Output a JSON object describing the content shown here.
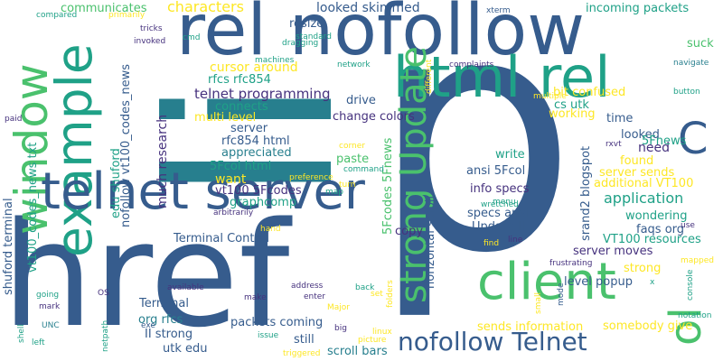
{
  "palette": {
    "dark_purple": "#46327e",
    "indigo": "#365c8d",
    "blue": "#277f8e",
    "teal": "#1fa187",
    "green": "#4ac16d",
    "lime": "#a0da39",
    "yellow": "#fde725",
    "background": "#ffffff"
  },
  "words": [
    {
      "text": "p"
    },
    {
      "text": "li"
    },
    {
      "text": "href"
    },
    {
      "text": "rel nofollow"
    },
    {
      "text": "html rel"
    },
    {
      "text": "example"
    },
    {
      "text": "window"
    },
    {
      "text": "telnet server"
    },
    {
      "text": "client"
    },
    {
      "text": "strong Update"
    },
    {
      "text": "nofollow Telnet"
    },
    {
      "text": "C"
    },
    {
      "text": "ol"
    },
    {
      "text": "characters"
    },
    {
      "text": "communicates"
    },
    {
      "text": "looked skimmed"
    },
    {
      "text": "incoming packets"
    },
    {
      "text": "telnet programming"
    },
    {
      "text": "rfcs rfc854"
    },
    {
      "text": "cursor around"
    },
    {
      "text": "application"
    },
    {
      "text": "bit confused"
    },
    {
      "text": "cs utk"
    },
    {
      "text": "change colors"
    },
    {
      "text": "multi level"
    },
    {
      "text": "connects"
    },
    {
      "text": "much research"
    },
    {
      "text": "server"
    },
    {
      "text": "rfc854 html"
    },
    {
      "text": "appreciated"
    },
    {
      "text": "5Fcol html"
    },
    {
      "text": "want"
    },
    {
      "text": "vt100 5Fcodes"
    },
    {
      "text": "graphcomp"
    },
    {
      "text": "write"
    },
    {
      "text": "ansi 5Fcol"
    },
    {
      "text": "paste"
    },
    {
      "text": "info specs"
    },
    {
      "text": "specs ansi"
    },
    {
      "text": "Update II"
    },
    {
      "text": "copy"
    },
    {
      "text": "time"
    },
    {
      "text": "need"
    },
    {
      "text": "found"
    },
    {
      "text": "looked"
    },
    {
      "text": "server sends"
    },
    {
      "text": "additional VT100"
    },
    {
      "text": "wondering"
    },
    {
      "text": "faqs org"
    },
    {
      "text": "VT100 resources"
    },
    {
      "text": "server moves"
    },
    {
      "text": "strong"
    },
    {
      "text": "level popup"
    },
    {
      "text": "sends information"
    },
    {
      "text": "somebody give"
    },
    {
      "text": "packets coming"
    },
    {
      "text": "org rfcs"
    },
    {
      "text": "II strong"
    },
    {
      "text": "utk edu"
    },
    {
      "text": "still"
    },
    {
      "text": "scroll bars"
    },
    {
      "text": "Terminal Control"
    },
    {
      "text": "Terminal"
    },
    {
      "text": "shuford terminal"
    },
    {
      "text": "vt100_codes_news txt"
    },
    {
      "text": "edu shuford"
    },
    {
      "text": "nofollow vt100_codes_news"
    },
    {
      "text": "horizontal scroll"
    },
    {
      "text": "srand2 blogspot"
    },
    {
      "text": "5Fcodes 5Fnews"
    },
    {
      "text": "5Fnews"
    },
    {
      "text": "working"
    },
    {
      "text": "resize"
    },
    {
      "text": "drive"
    },
    {
      "text": "suck"
    },
    {
      "text": "compared"
    },
    {
      "text": "primarily"
    },
    {
      "text": "tricks"
    },
    {
      "text": "invoked"
    },
    {
      "text": "cmd"
    },
    {
      "text": "standard"
    },
    {
      "text": "dragging"
    },
    {
      "text": "machines"
    },
    {
      "text": "network"
    },
    {
      "text": "xterm"
    },
    {
      "text": "different"
    },
    {
      "text": "complaints"
    },
    {
      "text": "navigate"
    },
    {
      "text": "multiple"
    },
    {
      "text": "button"
    },
    {
      "text": "rxvt"
    },
    {
      "text": "paid"
    },
    {
      "text": "corner"
    },
    {
      "text": "command"
    },
    {
      "text": "turn"
    },
    {
      "text": "map"
    },
    {
      "text": "preference"
    },
    {
      "text": "arbitrarily"
    },
    {
      "text": "wretched"
    },
    {
      "text": "menu"
    },
    {
      "text": "hand"
    },
    {
      "text": "use"
    },
    {
      "text": "line"
    },
    {
      "text": "find"
    },
    {
      "text": "mapped"
    },
    {
      "text": "frustrating"
    },
    {
      "text": "small"
    },
    {
      "text": "mode"
    },
    {
      "text": "x"
    },
    {
      "text": "console"
    },
    {
      "text": "notation"
    },
    {
      "text": "available"
    },
    {
      "text": "going"
    },
    {
      "text": "OS"
    },
    {
      "text": "make"
    },
    {
      "text": "address"
    },
    {
      "text": "enter"
    },
    {
      "text": "back"
    },
    {
      "text": "set"
    },
    {
      "text": "folders"
    },
    {
      "text": "mark"
    },
    {
      "text": "UNC"
    },
    {
      "text": "netpath"
    },
    {
      "text": "exe"
    },
    {
      "text": "issue"
    },
    {
      "text": "big"
    },
    {
      "text": "Major"
    },
    {
      "text": "linux"
    },
    {
      "text": "picture"
    },
    {
      "text": "triggered"
    },
    {
      "text": "left"
    },
    {
      "text": "shell"
    }
  ]
}
